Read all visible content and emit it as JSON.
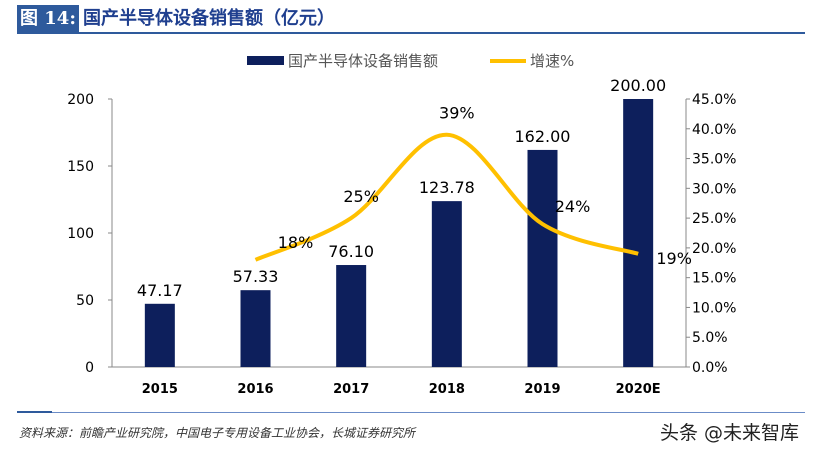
{
  "header": {
    "figure_label": "图 14:",
    "title": "国产半导体设备销售额（亿元）"
  },
  "chart_data": {
    "type": "bar+line",
    "categories": [
      "2015",
      "2016",
      "2017",
      "2018",
      "2019",
      "2020E"
    ],
    "series": [
      {
        "name": "国产半导体设备销售额",
        "type": "bar",
        "axis": "left",
        "color": "#0d1f5c",
        "values": [
          47.17,
          57.33,
          76.1,
          123.78,
          162.0,
          200.0
        ],
        "labels": [
          "47.17",
          "57.33",
          "76.10",
          "123.78",
          "162.00",
          "200.00"
        ]
      },
      {
        "name": "增速%",
        "type": "line",
        "axis": "right",
        "color": "#ffc000",
        "values": [
          null,
          18,
          25,
          39,
          24,
          19
        ],
        "labels": [
          "",
          "18%",
          "25%",
          "39%",
          "24%",
          "19%"
        ]
      }
    ],
    "y_left": {
      "range": [
        0,
        200
      ],
      "ticks": [
        "0",
        "50",
        "100",
        "150",
        "200"
      ]
    },
    "y_right": {
      "range": [
        0,
        45
      ],
      "ticks": [
        "0.0%",
        "5.0%",
        "10.0%",
        "15.0%",
        "20.0%",
        "25.0%",
        "30.0%",
        "35.0%",
        "40.0%",
        "45.0%"
      ]
    },
    "legend": "top",
    "grid": false
  },
  "footer": {
    "source": "资料来源：前瞻产业研究院，中国电子专用设备工业协会，长城证券研究所",
    "watermark": "头条 @未来智库"
  }
}
